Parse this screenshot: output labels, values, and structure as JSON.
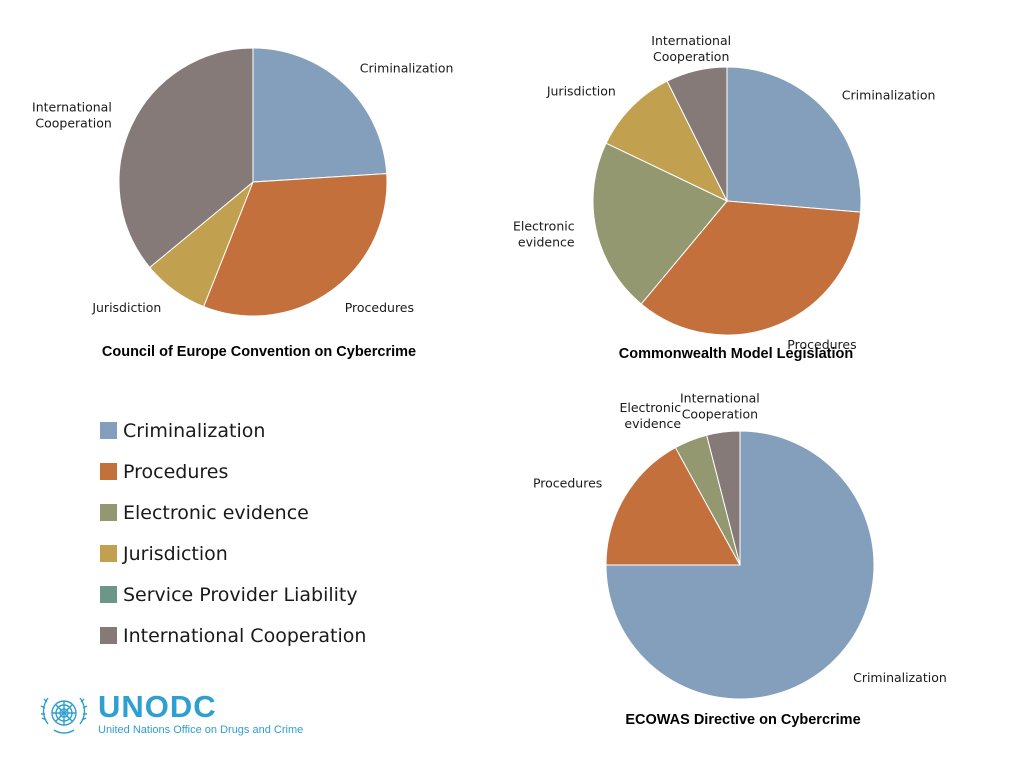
{
  "chart_data": [
    {
      "type": "pie",
      "title": "Council of Europe Convention on Cybercrime",
      "slices": [
        {
          "category": "Criminalization",
          "label": "Criminalization",
          "value": 24
        },
        {
          "category": "Procedures",
          "label": "Procedures",
          "value": 32
        },
        {
          "category": "Jurisdiction",
          "label": "Jurisdiction",
          "value": 8
        },
        {
          "category": "International Cooperation",
          "label": "International\nCooperation",
          "value": 36
        }
      ]
    },
    {
      "type": "pie",
      "title": "Commonwealth Model Legislation",
      "slices": [
        {
          "category": "Criminalization",
          "label": "Criminalization",
          "value": 25
        },
        {
          "category": "Procedures",
          "label": "Procedures",
          "value": 33
        },
        {
          "category": "Electronic evidence",
          "label": "Electronic\nevidence",
          "value": 20
        },
        {
          "category": "Jurisdiction",
          "label": "Jurisdiction",
          "value": 10
        },
        {
          "category": "International Cooperation",
          "label": "International\nCooperation",
          "value": 7
        }
      ]
    },
    {
      "type": "pie",
      "title": "ECOWAS Directive on Cybercrime",
      "slices": [
        {
          "category": "Criminalization",
          "label": "Criminalization",
          "value": 75
        },
        {
          "category": "Procedures",
          "label": "Procedures",
          "value": 17
        },
        {
          "category": "Electronic evidence",
          "label": "Electronic\nevidence",
          "value": 4
        },
        {
          "category": "International Cooperation",
          "label": "International\nCooperation",
          "value": 4
        }
      ]
    }
  ],
  "legend": [
    {
      "label": "Criminalization",
      "color": "#849fbb"
    },
    {
      "label": "Procedures",
      "color": "#c4703c"
    },
    {
      "label": "Electronic evidence",
      "color": "#949870"
    },
    {
      "label": "Jurisdiction",
      "color": "#c1a050"
    },
    {
      "label": "Service Provider Liability",
      "color": "#6b9688"
    },
    {
      "label": "International Cooperation",
      "color": "#867a79"
    }
  ],
  "logo": {
    "name": "UNODC",
    "subtitle": "United Nations Office on Drugs and Crime",
    "icon": "un-emblem-icon",
    "color": "#2e9fd1"
  }
}
